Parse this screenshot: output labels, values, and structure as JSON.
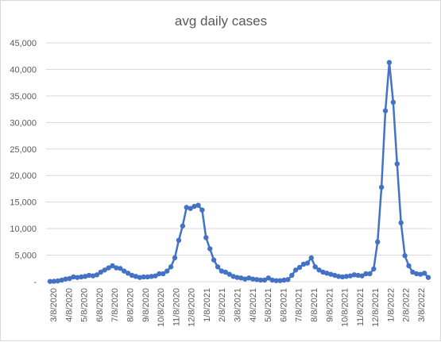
{
  "chart_data": {
    "type": "line",
    "title": "avg daily cases",
    "xlabel": "",
    "ylabel": "",
    "ylim": [
      0,
      45000
    ],
    "grid": true,
    "legend": "none",
    "colors": {
      "series": "#4472c4",
      "grid": "#d9d9d9",
      "text": "#595959"
    },
    "y_tick_labels": [
      "-",
      "5,000",
      "10,000",
      "15,000",
      "20,000",
      "25,000",
      "30,000",
      "35,000",
      "40,000",
      "45,000"
    ],
    "y_tick_values": [
      0,
      5000,
      10000,
      15000,
      20000,
      25000,
      30000,
      35000,
      40000,
      45000
    ],
    "x_tick_labels": [
      "3/8/2020",
      "4/8/2020",
      "5/8/2020",
      "6/8/2020",
      "7/8/2020",
      "8/8/2020",
      "9/8/2020",
      "10/8/2020",
      "11/8/2020",
      "12/8/2020",
      "1/8/2021",
      "2/8/2021",
      "3/8/2021",
      "4/8/2021",
      "5/8/2021",
      "6/8/2021",
      "7/8/2021",
      "8/8/2021",
      "9/8/2021",
      "10/8/2021",
      "11/8/2021",
      "12/8/2021",
      "1/8/2022",
      "2/8/2022",
      "3/8/2022"
    ],
    "series": [
      {
        "values": [
          50,
          80,
          150,
          300,
          500,
          600,
          900,
          800,
          900,
          1000,
          1200,
          1100,
          1300,
          1800,
          2200,
          2600,
          3000,
          2600,
          2500,
          2000,
          1600,
          1200,
          1000,
          800,
          900,
          900,
          1000,
          1100,
          1500,
          1500,
          2000,
          2800,
          4500,
          7800,
          10500,
          14000,
          13800,
          14200,
          14400,
          13500,
          8300,
          6200,
          4100,
          2800,
          2000,
          1800,
          1400,
          1000,
          800,
          700,
          500,
          700,
          500,
          400,
          300,
          300,
          700,
          300,
          200,
          200,
          300,
          400,
          1200,
          2200,
          2700,
          3300,
          3500,
          4500,
          2800,
          2200,
          1800,
          1600,
          1400,
          1200,
          1000,
          900,
          1000,
          1100,
          1300,
          1200,
          1100,
          1500,
          1500,
          2400,
          7500,
          17800,
          32200,
          41300,
          33800,
          22200,
          11100,
          4900,
          3000,
          1800,
          1500,
          1400,
          1600,
          800
        ]
      }
    ]
  }
}
